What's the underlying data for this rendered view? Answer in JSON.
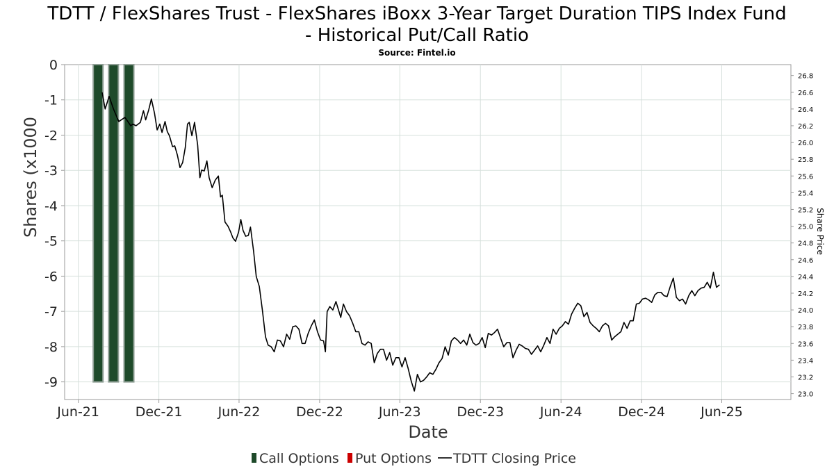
{
  "title_line1": "TDTT / FlexShares Trust - FlexShares iBoxx 3-Year Target Duration TIPS Index Fund",
  "title_line2": "- Historical Put/Call Ratio",
  "subtitle": "Source: Fintel.io",
  "colors": {
    "call": "#1e4a2a",
    "call_edge": "#8e9e94",
    "put": "#cc0000",
    "price": "#000000"
  },
  "chart_data": {
    "type": "bar",
    "xlabel": "Date",
    "ylabel_left": "Shares (x1000",
    "ylabel_right": "Share Price",
    "left_ylim": [
      -9.5,
      0
    ],
    "left_ticks": [
      0,
      -1,
      -2,
      -3,
      -4,
      -5,
      -6,
      -7,
      -8,
      -9
    ],
    "right_ylim": [
      22.93,
      26.93
    ],
    "right_ticks": [
      "26.8",
      "26.6",
      "26.4",
      "26.2",
      "26.0",
      "25.8",
      "25.6",
      "25.4",
      "25.2",
      "25.0",
      "24.8",
      "24.6",
      "24.4",
      "24.2",
      "24.0",
      "23.8",
      "23.6",
      "23.4",
      "23.2",
      "23.0"
    ],
    "x_range": [
      "2021-05-01",
      "2025-11-05"
    ],
    "x_ticks": [
      {
        "label": "Jun-21",
        "date": "2021-06-01"
      },
      {
        "label": "Dec-21",
        "date": "2021-12-01"
      },
      {
        "label": "Jun-22",
        "date": "2022-06-01"
      },
      {
        "label": "Dec-22",
        "date": "2022-12-01"
      },
      {
        "label": "Jun-23",
        "date": "2023-06-01"
      },
      {
        "label": "Dec-23",
        "date": "2023-12-01"
      },
      {
        "label": "Jun-24",
        "date": "2024-06-01"
      },
      {
        "label": "Dec-24",
        "date": "2024-12-01"
      },
      {
        "label": "Jun-25",
        "date": "2025-06-01"
      }
    ],
    "call_options": [
      {
        "date": "2021-07-16",
        "value": -9
      },
      {
        "date": "2021-08-20",
        "value": -9
      },
      {
        "date": "2021-09-24",
        "value": -9
      }
    ],
    "put_options": [],
    "price_series": [
      [
        "2021-07-25",
        26.6
      ],
      [
        "2021-08-01",
        26.4
      ],
      [
        "2021-08-10",
        26.55
      ],
      [
        "2021-08-20",
        26.4
      ],
      [
        "2021-09-01",
        26.25
      ],
      [
        "2021-09-15",
        26.3
      ],
      [
        "2021-09-28",
        26.2
      ],
      [
        "2021-10-03",
        26.22
      ],
      [
        "2021-10-10",
        26.2
      ],
      [
        "2021-10-20",
        26.24
      ],
      [
        "2021-10-27",
        26.38
      ],
      [
        "2021-11-01",
        26.27
      ],
      [
        "2021-11-08",
        26.39
      ],
      [
        "2021-11-14",
        26.52
      ],
      [
        "2021-11-21",
        26.35
      ],
      [
        "2021-11-27",
        26.15
      ],
      [
        "2021-12-03",
        26.22
      ],
      [
        "2021-12-08",
        26.12
      ],
      [
        "2021-12-15",
        26.25
      ],
      [
        "2021-12-20",
        26.13
      ],
      [
        "2021-12-25",
        26.08
      ],
      [
        "2022-01-01",
        25.95
      ],
      [
        "2022-01-06",
        25.96
      ],
      [
        "2022-01-12",
        25.85
      ],
      [
        "2022-01-18",
        25.7
      ],
      [
        "2022-01-24",
        25.76
      ],
      [
        "2022-01-30",
        25.94
      ],
      [
        "2022-02-04",
        26.22
      ],
      [
        "2022-02-08",
        26.24
      ],
      [
        "2022-02-14",
        26.08
      ],
      [
        "2022-02-20",
        26.24
      ],
      [
        "2022-02-27",
        25.97
      ],
      [
        "2022-03-04",
        25.58
      ],
      [
        "2022-03-08",
        25.67
      ],
      [
        "2022-03-14",
        25.66
      ],
      [
        "2022-03-20",
        25.78
      ],
      [
        "2022-03-25",
        25.58
      ],
      [
        "2022-04-01",
        25.46
      ],
      [
        "2022-04-08",
        25.55
      ],
      [
        "2022-04-15",
        25.6
      ],
      [
        "2022-04-20",
        25.35
      ],
      [
        "2022-04-24",
        25.37
      ],
      [
        "2022-04-30",
        25.05
      ],
      [
        "2022-05-07",
        25.0
      ],
      [
        "2022-05-13",
        24.93
      ],
      [
        "2022-05-18",
        24.86
      ],
      [
        "2022-05-24",
        24.82
      ],
      [
        "2022-05-31",
        24.93
      ],
      [
        "2022-06-05",
        25.08
      ],
      [
        "2022-06-10",
        24.95
      ],
      [
        "2022-06-16",
        24.88
      ],
      [
        "2022-06-22",
        24.89
      ],
      [
        "2022-06-27",
        24.99
      ],
      [
        "2022-07-04",
        24.7
      ],
      [
        "2022-07-10",
        24.4
      ],
      [
        "2022-07-17",
        24.28
      ],
      [
        "2022-07-24",
        24.0
      ],
      [
        "2022-07-31",
        23.68
      ],
      [
        "2022-08-06",
        23.58
      ],
      [
        "2022-08-13",
        23.56
      ],
      [
        "2022-08-20",
        23.5
      ],
      [
        "2022-08-27",
        23.64
      ],
      [
        "2022-09-03",
        23.63
      ],
      [
        "2022-09-10",
        23.56
      ],
      [
        "2022-09-17",
        23.71
      ],
      [
        "2022-09-24",
        23.65
      ],
      [
        "2022-10-01",
        23.8
      ],
      [
        "2022-10-08",
        23.81
      ],
      [
        "2022-10-15",
        23.77
      ],
      [
        "2022-10-22",
        23.6
      ],
      [
        "2022-10-29",
        23.6
      ],
      [
        "2022-11-05",
        23.72
      ],
      [
        "2022-11-12",
        23.81
      ],
      [
        "2022-11-19",
        23.88
      ],
      [
        "2022-11-26",
        23.74
      ],
      [
        "2022-12-03",
        23.64
      ],
      [
        "2022-12-10",
        23.63
      ],
      [
        "2022-12-14",
        23.5
      ],
      [
        "2022-12-18",
        23.98
      ],
      [
        "2022-12-24",
        24.04
      ],
      [
        "2022-12-31",
        24.0
      ],
      [
        "2023-01-07",
        24.1
      ],
      [
        "2023-01-14",
        23.98
      ],
      [
        "2023-01-18",
        23.91
      ],
      [
        "2023-01-24",
        24.07
      ],
      [
        "2023-01-31",
        23.98
      ],
      [
        "2023-02-07",
        23.93
      ],
      [
        "2023-02-14",
        23.84
      ],
      [
        "2023-02-21",
        23.74
      ],
      [
        "2023-02-28",
        23.74
      ],
      [
        "2023-03-07",
        23.6
      ],
      [
        "2023-03-14",
        23.58
      ],
      [
        "2023-03-21",
        23.62
      ],
      [
        "2023-03-28",
        23.6
      ],
      [
        "2023-04-04",
        23.37
      ],
      [
        "2023-04-11",
        23.48
      ],
      [
        "2023-04-18",
        23.53
      ],
      [
        "2023-04-25",
        23.53
      ],
      [
        "2023-05-02",
        23.4
      ],
      [
        "2023-05-09",
        23.49
      ],
      [
        "2023-05-16",
        23.34
      ],
      [
        "2023-05-23",
        23.43
      ],
      [
        "2023-05-30",
        23.43
      ],
      [
        "2023-06-06",
        23.32
      ],
      [
        "2023-06-13",
        23.43
      ],
      [
        "2023-06-20",
        23.3
      ],
      [
        "2023-06-27",
        23.15
      ],
      [
        "2023-07-04",
        23.03
      ],
      [
        "2023-07-11",
        23.23
      ],
      [
        "2023-07-18",
        23.14
      ],
      [
        "2023-07-25",
        23.16
      ],
      [
        "2023-08-01",
        23.2
      ],
      [
        "2023-08-08",
        23.25
      ],
      [
        "2023-08-15",
        23.23
      ],
      [
        "2023-08-22",
        23.29
      ],
      [
        "2023-08-29",
        23.37
      ],
      [
        "2023-09-05",
        23.42
      ],
      [
        "2023-09-12",
        23.56
      ],
      [
        "2023-09-19",
        23.46
      ],
      [
        "2023-09-26",
        23.63
      ],
      [
        "2023-10-03",
        23.67
      ],
      [
        "2023-10-10",
        23.64
      ],
      [
        "2023-10-17",
        23.6
      ],
      [
        "2023-10-24",
        23.64
      ],
      [
        "2023-10-31",
        23.58
      ],
      [
        "2023-11-07",
        23.71
      ],
      [
        "2023-11-14",
        23.61
      ],
      [
        "2023-11-21",
        23.58
      ],
      [
        "2023-11-28",
        23.6
      ],
      [
        "2023-12-05",
        23.67
      ],
      [
        "2023-12-12",
        23.55
      ],
      [
        "2023-12-19",
        23.72
      ],
      [
        "2023-12-26",
        23.7
      ],
      [
        "2024-01-02",
        23.73
      ],
      [
        "2024-01-09",
        23.77
      ],
      [
        "2024-01-16",
        23.66
      ],
      [
        "2024-01-23",
        23.56
      ],
      [
        "2024-01-30",
        23.61
      ],
      [
        "2024-02-06",
        23.61
      ],
      [
        "2024-02-13",
        23.43
      ],
      [
        "2024-02-20",
        23.52
      ],
      [
        "2024-02-27",
        23.59
      ],
      [
        "2024-03-05",
        23.57
      ],
      [
        "2024-03-12",
        23.54
      ],
      [
        "2024-03-19",
        23.53
      ],
      [
        "2024-03-26",
        23.47
      ],
      [
        "2024-04-02",
        23.52
      ],
      [
        "2024-04-09",
        23.57
      ],
      [
        "2024-04-16",
        23.5
      ],
      [
        "2024-04-23",
        23.58
      ],
      [
        "2024-04-30",
        23.67
      ],
      [
        "2024-05-07",
        23.6
      ],
      [
        "2024-05-14",
        23.77
      ],
      [
        "2024-05-21",
        23.71
      ],
      [
        "2024-05-28",
        23.78
      ],
      [
        "2024-06-04",
        23.81
      ],
      [
        "2024-06-11",
        23.86
      ],
      [
        "2024-06-18",
        23.83
      ],
      [
        "2024-06-25",
        23.95
      ],
      [
        "2024-07-02",
        24.02
      ],
      [
        "2024-07-09",
        24.08
      ],
      [
        "2024-07-16",
        24.05
      ],
      [
        "2024-07-23",
        23.92
      ],
      [
        "2024-07-30",
        23.97
      ],
      [
        "2024-08-06",
        23.85
      ],
      [
        "2024-08-13",
        23.81
      ],
      [
        "2024-08-20",
        23.78
      ],
      [
        "2024-08-27",
        23.74
      ],
      [
        "2024-09-03",
        23.81
      ],
      [
        "2024-09-10",
        23.84
      ],
      [
        "2024-09-17",
        23.81
      ],
      [
        "2024-09-24",
        23.64
      ],
      [
        "2024-10-01",
        23.68
      ],
      [
        "2024-10-08",
        23.71
      ],
      [
        "2024-10-15",
        23.74
      ],
      [
        "2024-10-22",
        23.85
      ],
      [
        "2024-10-29",
        23.78
      ],
      [
        "2024-11-05",
        23.87
      ],
      [
        "2024-11-12",
        23.87
      ],
      [
        "2024-11-19",
        24.07
      ],
      [
        "2024-11-26",
        24.08
      ],
      [
        "2024-12-03",
        24.13
      ],
      [
        "2024-12-10",
        24.14
      ],
      [
        "2024-12-17",
        24.12
      ],
      [
        "2024-12-24",
        24.09
      ],
      [
        "2024-12-31",
        24.18
      ],
      [
        "2025-01-07",
        24.21
      ],
      [
        "2025-01-14",
        24.21
      ],
      [
        "2025-01-21",
        24.17
      ],
      [
        "2025-01-28",
        24.16
      ],
      [
        "2025-02-04",
        24.28
      ],
      [
        "2025-02-11",
        24.38
      ],
      [
        "2025-02-18",
        24.15
      ],
      [
        "2025-02-25",
        24.11
      ],
      [
        "2025-03-04",
        24.13
      ],
      [
        "2025-03-11",
        24.07
      ],
      [
        "2025-03-18",
        24.17
      ],
      [
        "2025-03-25",
        24.23
      ],
      [
        "2025-04-01",
        24.17
      ],
      [
        "2025-04-08",
        24.23
      ],
      [
        "2025-04-15",
        24.26
      ],
      [
        "2025-04-22",
        24.27
      ],
      [
        "2025-04-29",
        24.33
      ],
      [
        "2025-05-06",
        24.26
      ],
      [
        "2025-05-13",
        24.45
      ],
      [
        "2025-05-20",
        24.27
      ],
      [
        "2025-05-27",
        24.3
      ]
    ]
  },
  "legend": {
    "call_label": "Call Options",
    "put_label": "Put Options",
    "price_label": "TDTT Closing Price"
  }
}
